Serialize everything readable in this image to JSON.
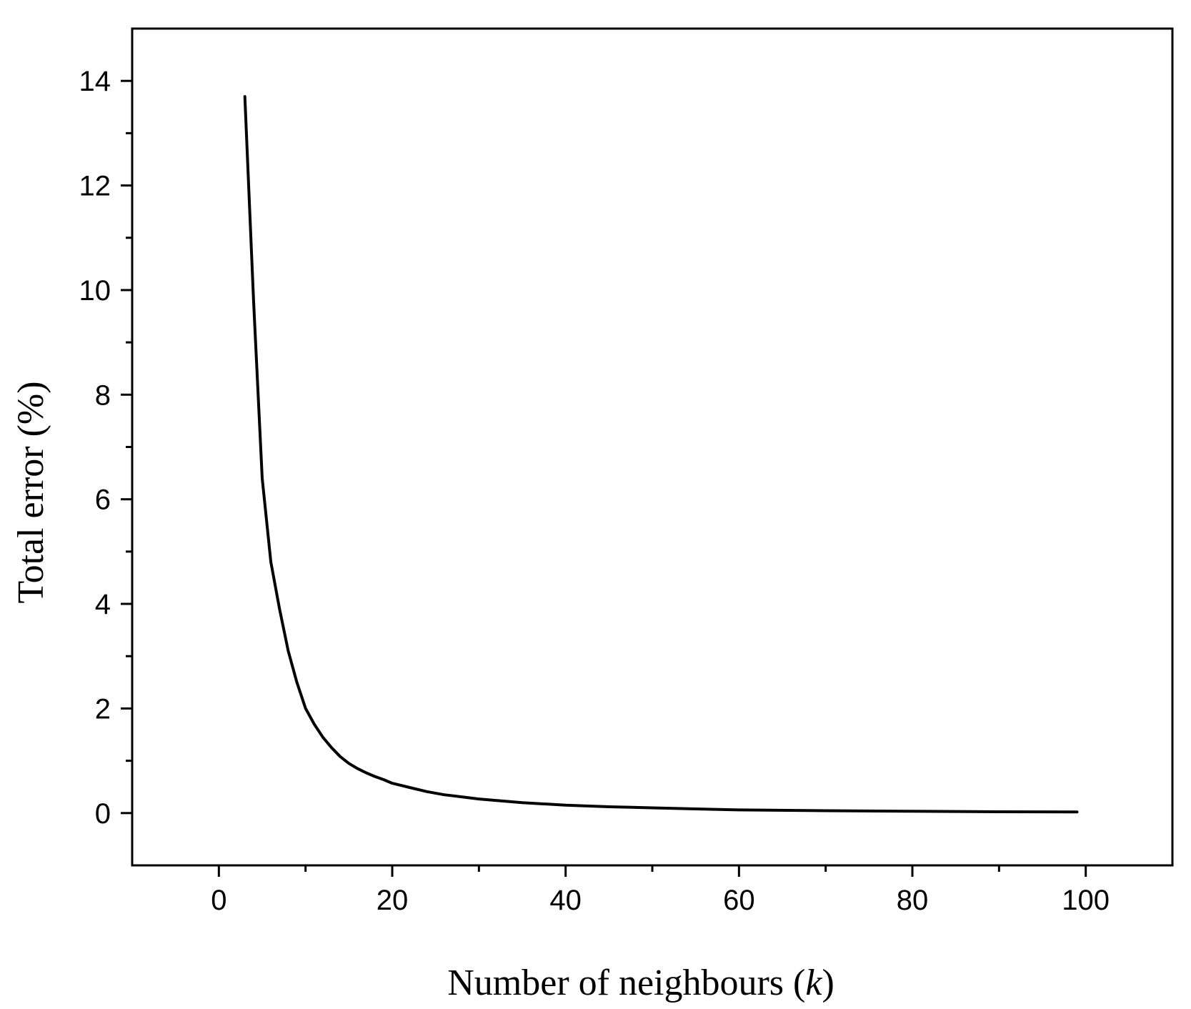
{
  "chart_data": {
    "type": "line",
    "title": "",
    "xlabel": "Number of neighbours (k)",
    "xlabel_parts": [
      "Number of neighbours (",
      "k",
      ")"
    ],
    "ylabel": "Total error (%)",
    "xlim": [
      -10,
      110
    ],
    "ylim": [
      -1,
      15
    ],
    "x_ticks": [
      "0",
      "20",
      "40",
      "60",
      "80",
      "100"
    ],
    "y_ticks": [
      "0",
      "2",
      "4",
      "6",
      "8",
      "10",
      "12",
      "14"
    ],
    "grid": false,
    "legend": "none",
    "color": "#000000",
    "series": [
      {
        "x": [
          3,
          4,
          5,
          6,
          7,
          8,
          9,
          10,
          11,
          12,
          13,
          14,
          15,
          16,
          17,
          18,
          19,
          20,
          22,
          24,
          26,
          28,
          30,
          35,
          40,
          45,
          50,
          55,
          60,
          70,
          80,
          90,
          99
        ],
        "values": [
          13.7,
          9.8,
          6.4,
          4.8,
          3.9,
          3.1,
          2.5,
          2.0,
          1.7,
          1.45,
          1.25,
          1.08,
          0.95,
          0.85,
          0.77,
          0.7,
          0.64,
          0.57,
          0.49,
          0.41,
          0.35,
          0.31,
          0.27,
          0.2,
          0.15,
          0.12,
          0.1,
          0.08,
          0.06,
          0.045,
          0.035,
          0.025,
          0.02
        ]
      }
    ]
  }
}
